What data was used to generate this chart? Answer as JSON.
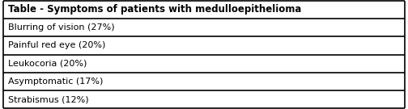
{
  "title": "Table - Symptoms of patients with medulloepithelioma",
  "rows": [
    "Blurring of vision (27%)",
    "Painful red eye (20%)",
    "Leukocoria (20%)",
    "Asymptomatic (17%)",
    "Strabismus (12%)"
  ],
  "header_bg": "#ffffff",
  "row_bg": "#ffffff",
  "border_color": "#000000",
  "title_fontsize": 8.5,
  "row_fontsize": 8.0,
  "fig_width": 5.04,
  "fig_height": 1.35,
  "dpi": 100
}
